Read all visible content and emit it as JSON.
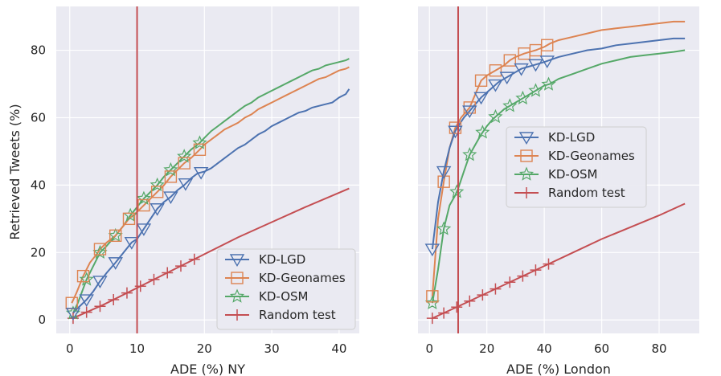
{
  "figure": {
    "ylabel": "Retrieved Tweets (%)"
  },
  "chart_data": [
    {
      "type": "line",
      "xlabel": "ADE (%) NY",
      "ylabel": "Retrieved Tweets (%)",
      "xlim": [
        -2,
        43
      ],
      "ylim": [
        -4,
        93
      ],
      "xticks": [
        0,
        10,
        20,
        30,
        40
      ],
      "yticks": [
        0,
        20,
        40,
        60,
        80
      ],
      "grid": true,
      "legend_position": "lower-right",
      "vline": {
        "x": 10,
        "color": "#c44e52"
      },
      "series": [
        {
          "name": "KD-LGD",
          "color": "#4c72b0",
          "marker": "triangle-down",
          "points": [
            [
              0.5,
              2
            ],
            [
              1.2,
              3.5
            ],
            [
              2.5,
              6
            ],
            [
              3.5,
              8.5
            ],
            [
              4.5,
              11.5
            ],
            [
              5.5,
              14
            ],
            [
              6.8,
              17
            ],
            [
              8,
              20
            ],
            [
              9.2,
              23
            ],
            [
              10,
              24
            ],
            [
              11,
              27
            ],
            [
              12,
              30
            ],
            [
              13,
              33
            ],
            [
              14,
              35
            ],
            [
              15,
              36.5
            ],
            [
              16,
              38.5
            ],
            [
              17,
              40
            ],
            [
              18,
              42
            ],
            [
              19,
              43.5
            ],
            [
              20,
              44
            ],
            [
              21,
              45
            ],
            [
              22,
              46.5
            ],
            [
              23,
              48
            ],
            [
              24,
              49.5
            ],
            [
              25,
              51
            ],
            [
              26,
              52
            ],
            [
              27,
              53.5
            ],
            [
              28,
              55
            ],
            [
              29,
              56
            ],
            [
              30,
              57.5
            ],
            [
              31,
              58.5
            ],
            [
              32,
              59.5
            ],
            [
              33,
              60.5
            ],
            [
              34,
              61.5
            ],
            [
              35,
              62
            ],
            [
              36,
              63
            ],
            [
              37,
              63.5
            ],
            [
              38,
              64
            ],
            [
              39,
              64.5
            ],
            [
              40,
              66
            ],
            [
              41,
              67
            ],
            [
              41.5,
              68.5
            ]
          ],
          "markers_x": [
            0.5,
            2.5,
            4.5,
            6.8,
            9.2,
            11,
            13,
            15,
            17.2,
            19.5
          ]
        },
        {
          "name": "KD-Geonames",
          "color": "#dd8452",
          "marker": "square",
          "points": [
            [
              0.3,
              5
            ],
            [
              1,
              8
            ],
            [
              2,
              13
            ],
            [
              3,
              17
            ],
            [
              4,
              19.5
            ],
            [
              4.5,
              21
            ],
            [
              5.5,
              23
            ],
            [
              6.8,
              25
            ],
            [
              8,
              28
            ],
            [
              8.8,
              30
            ],
            [
              10,
              32
            ],
            [
              11,
              34
            ],
            [
              12,
              36
            ],
            [
              13,
              38
            ],
            [
              14,
              40
            ],
            [
              15,
              42.5
            ],
            [
              16,
              44.5
            ],
            [
              17,
              46.5
            ],
            [
              18,
              48
            ],
            [
              19.3,
              50.5
            ],
            [
              20,
              52
            ],
            [
              21,
              53.5
            ],
            [
              22,
              55
            ],
            [
              23,
              56.5
            ],
            [
              24,
              57.5
            ],
            [
              25,
              58.5
            ],
            [
              26,
              60
            ],
            [
              27,
              61
            ],
            [
              28,
              62.5
            ],
            [
              29,
              63.5
            ],
            [
              30,
              64.5
            ],
            [
              31,
              65.5
            ],
            [
              32,
              66.5
            ],
            [
              33,
              67.5
            ],
            [
              34,
              68.5
            ],
            [
              35,
              69.5
            ],
            [
              36,
              70.5
            ],
            [
              37,
              71.5
            ],
            [
              38,
              72
            ],
            [
              39,
              73
            ],
            [
              40,
              74
            ],
            [
              41,
              74.5
            ],
            [
              41.5,
              75
            ]
          ],
          "markers_x": [
            0.3,
            2,
            4.5,
            6.8,
            8.8,
            11,
            13,
            15,
            17,
            19.3
          ]
        },
        {
          "name": "KD-OSM",
          "color": "#55a868",
          "marker": "star",
          "points": [
            [
              0.5,
              2
            ],
            [
              1.2,
              5
            ],
            [
              2.5,
              12
            ],
            [
              3.5,
              16
            ],
            [
              4.5,
              20
            ],
            [
              5.5,
              22
            ],
            [
              6.8,
              25
            ],
            [
              8,
              28
            ],
            [
              9,
              31
            ],
            [
              10,
              33.5
            ],
            [
              11,
              36
            ],
            [
              12,
              38
            ],
            [
              13,
              40
            ],
            [
              14,
              42.5
            ],
            [
              15,
              44.5
            ],
            [
              16,
              46.5
            ],
            [
              17,
              48.5
            ],
            [
              18,
              50.5
            ],
            [
              19.3,
              52.5
            ],
            [
              20,
              54
            ],
            [
              21,
              56
            ],
            [
              22,
              57.5
            ],
            [
              23,
              59
            ],
            [
              24,
              60.5
            ],
            [
              25,
              62
            ],
            [
              26,
              63.5
            ],
            [
              27,
              64.5
            ],
            [
              28,
              66
            ],
            [
              29,
              67
            ],
            [
              30,
              68
            ],
            [
              31,
              69
            ],
            [
              32,
              70
            ],
            [
              33,
              71
            ],
            [
              34,
              72
            ],
            [
              35,
              73
            ],
            [
              36,
              74
            ],
            [
              37,
              74.5
            ],
            [
              38,
              75.5
            ],
            [
              39,
              76
            ],
            [
              40,
              76.5
            ],
            [
              41,
              77
            ],
            [
              41.5,
              77.5
            ]
          ],
          "markers_x": [
            0.5,
            2.5,
            4.5,
            6.8,
            9,
            11,
            13,
            15,
            17,
            19.3
          ]
        },
        {
          "name": "Random test",
          "color": "#c44e52",
          "marker": "plus",
          "points": [
            [
              0.5,
              0.5
            ],
            [
              5,
              4.5
            ],
            [
              10,
              9.5
            ],
            [
              15,
              14.5
            ],
            [
              20,
              19.5
            ],
            [
              25,
              24.5
            ],
            [
              30,
              29
            ],
            [
              35,
              33.5
            ],
            [
              41.5,
              39
            ]
          ],
          "markers_x": [
            0.5,
            2.5,
            4.5,
            6.5,
            8.5,
            10.5,
            12.5,
            14.5,
            16.5,
            18.5
          ]
        }
      ]
    },
    {
      "type": "line",
      "xlabel": "ADE (%) London",
      "xlim": [
        -4,
        94
      ],
      "ylim": [
        -4,
        93
      ],
      "xticks": [
        0,
        20,
        40,
        60,
        80
      ],
      "yticks": [
        0,
        20,
        40,
        60,
        80
      ],
      "grid": true,
      "legend_position": "center-right",
      "vline": {
        "x": 10,
        "color": "#c44e52"
      },
      "series": [
        {
          "name": "KD-LGD",
          "color": "#4c72b0",
          "marker": "triangle-down",
          "points": [
            [
              1,
              21
            ],
            [
              3,
              35
            ],
            [
              5,
              44
            ],
            [
              7,
              51
            ],
            [
              9,
              56
            ],
            [
              10,
              57.5
            ],
            [
              12,
              60
            ],
            [
              14,
              62
            ],
            [
              16,
              64
            ],
            [
              18,
              66
            ],
            [
              20,
              67.5
            ],
            [
              22,
              69
            ],
            [
              24,
              70.5
            ],
            [
              26,
              71.5
            ],
            [
              28,
              72.5
            ],
            [
              30,
              73.5
            ],
            [
              32,
              74.5
            ],
            [
              34,
              75
            ],
            [
              36,
              75.5
            ],
            [
              38,
              76
            ],
            [
              40,
              76.5
            ],
            [
              45,
              78
            ],
            [
              50,
              79
            ],
            [
              55,
              80
            ],
            [
              60,
              80.5
            ],
            [
              65,
              81.5
            ],
            [
              70,
              82
            ],
            [
              75,
              82.5
            ],
            [
              80,
              83
            ],
            [
              85,
              83.5
            ],
            [
              89,
              83.5
            ]
          ],
          "markers_x": [
            1,
            5,
            9,
            14,
            18,
            23,
            27,
            32,
            37,
            41
          ]
        },
        {
          "name": "KD-Geonames",
          "color": "#dd8452",
          "marker": "square",
          "points": [
            [
              1,
              7
            ],
            [
              3,
              30
            ],
            [
              5,
              41
            ],
            [
              7,
              51
            ],
            [
              9,
              57
            ],
            [
              11,
              60
            ],
            [
              13,
              62
            ],
            [
              14,
              63
            ],
            [
              16,
              67
            ],
            [
              18,
              71
            ],
            [
              20,
              72.5
            ],
            [
              22,
              73.5
            ],
            [
              24,
              74.5
            ],
            [
              26,
              75.5
            ],
            [
              28,
              77
            ],
            [
              30,
              78
            ],
            [
              33,
              79
            ],
            [
              35,
              79.5
            ],
            [
              37,
              80
            ],
            [
              40,
              81
            ],
            [
              42,
              82
            ],
            [
              45,
              83
            ],
            [
              50,
              84
            ],
            [
              55,
              85
            ],
            [
              60,
              86
            ],
            [
              65,
              86.5
            ],
            [
              70,
              87
            ],
            [
              75,
              87.5
            ],
            [
              80,
              88
            ],
            [
              85,
              88.5
            ],
            [
              89,
              88.5
            ]
          ],
          "markers_x": [
            1,
            5,
            9,
            14,
            18,
            23,
            28,
            33,
            37,
            41
          ]
        },
        {
          "name": "KD-OSM",
          "color": "#55a868",
          "marker": "star",
          "points": [
            [
              1,
              5
            ],
            [
              3,
              15
            ],
            [
              5,
              27
            ],
            [
              7,
              34
            ],
            [
              9,
              37
            ],
            [
              10,
              39
            ],
            [
              12,
              44
            ],
            [
              14,
              49
            ],
            [
              16,
              52
            ],
            [
              18,
              55
            ],
            [
              20,
              57.5
            ],
            [
              22,
              59.5
            ],
            [
              24,
              61
            ],
            [
              26,
              62.5
            ],
            [
              28,
              63.5
            ],
            [
              30,
              64.5
            ],
            [
              33,
              66
            ],
            [
              35,
              67
            ],
            [
              37,
              68
            ],
            [
              40,
              69.5
            ],
            [
              42,
              70
            ],
            [
              45,
              71.5
            ],
            [
              50,
              73
            ],
            [
              55,
              74.5
            ],
            [
              60,
              76
            ],
            [
              65,
              77
            ],
            [
              70,
              78
            ],
            [
              75,
              78.5
            ],
            [
              80,
              79
            ],
            [
              85,
              79.5
            ],
            [
              89,
              80
            ]
          ],
          "markers_x": [
            1,
            5,
            9.5,
            14,
            18.5,
            23,
            28,
            32.5,
            37,
            41.5
          ]
        },
        {
          "name": "Random test",
          "color": "#c44e52",
          "marker": "plus",
          "points": [
            [
              1,
              0.5
            ],
            [
              10,
              4
            ],
            [
              20,
              8
            ],
            [
              30,
              12
            ],
            [
              40,
              16
            ],
            [
              50,
              20
            ],
            [
              60,
              24
            ],
            [
              70,
              27.5
            ],
            [
              80,
              31
            ],
            [
              89,
              34.5
            ]
          ],
          "markers_x": [
            1,
            5,
            9.5,
            14,
            18.5,
            23,
            28,
            32.5,
            37,
            41.5
          ]
        }
      ]
    }
  ]
}
